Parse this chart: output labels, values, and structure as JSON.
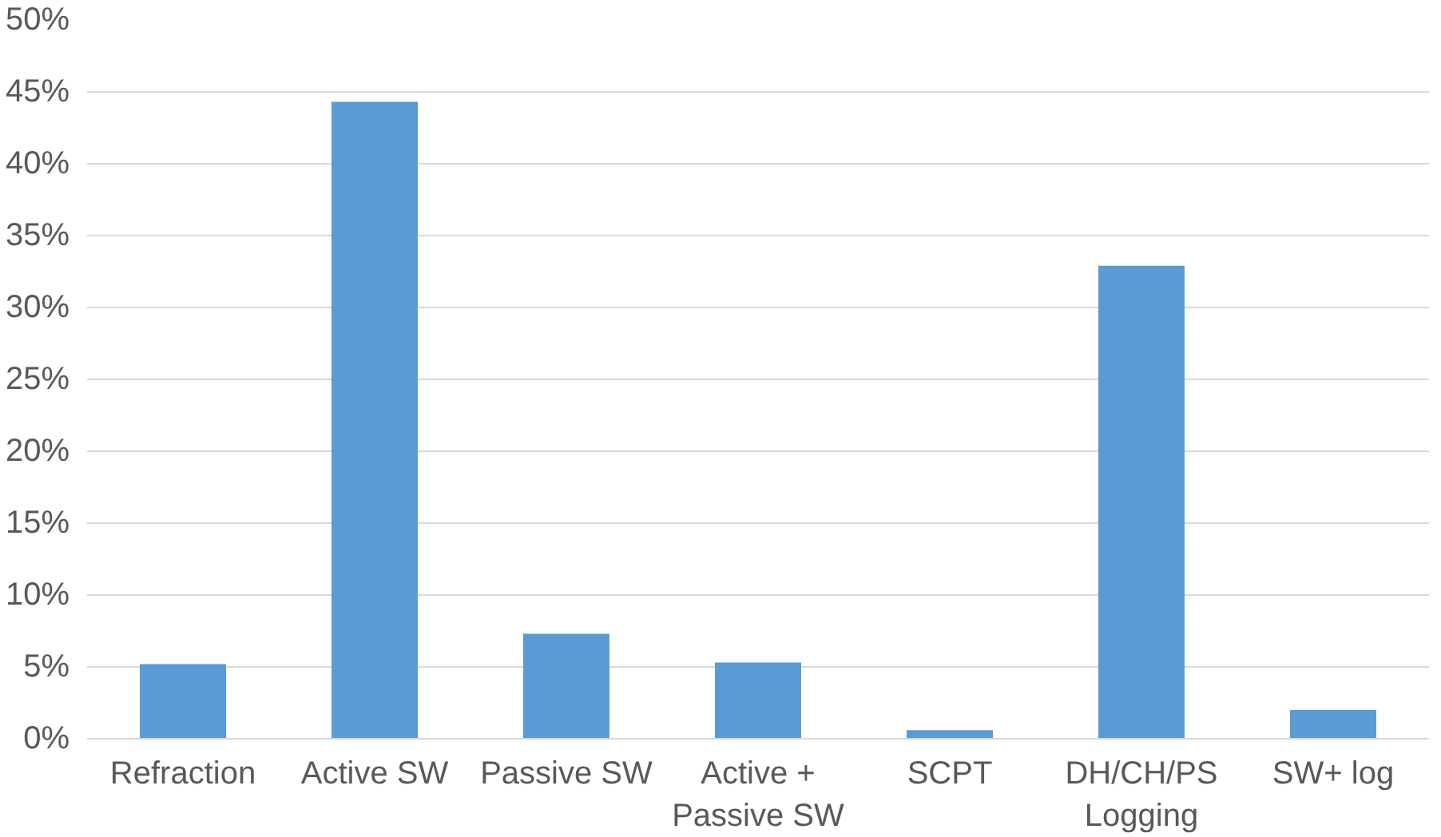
{
  "chart_data": {
    "type": "bar",
    "categories": [
      "Refraction",
      "Active SW",
      "Passive SW",
      "Active +\nPassive SW",
      "SCPT",
      "DH/CH/PS\nLogging",
      "SW+ log"
    ],
    "values": [
      5.2,
      44.3,
      7.3,
      5.3,
      0.6,
      32.9,
      2.0
    ],
    "color": "#5b9bd5",
    "ylim": [
      0,
      50
    ],
    "yticks": [
      {
        "value": 0,
        "label": "0%"
      },
      {
        "value": 5,
        "label": "5%"
      },
      {
        "value": 10,
        "label": "10%"
      },
      {
        "value": 15,
        "label": "15%"
      },
      {
        "value": 20,
        "label": "20%"
      },
      {
        "value": 25,
        "label": "25%"
      },
      {
        "value": 30,
        "label": "30%"
      },
      {
        "value": 35,
        "label": "35%"
      },
      {
        "value": 40,
        "label": "40%"
      },
      {
        "value": 45,
        "label": "45%"
      },
      {
        "value": 50,
        "label": "50%"
      }
    ],
    "grid": "y"
  }
}
